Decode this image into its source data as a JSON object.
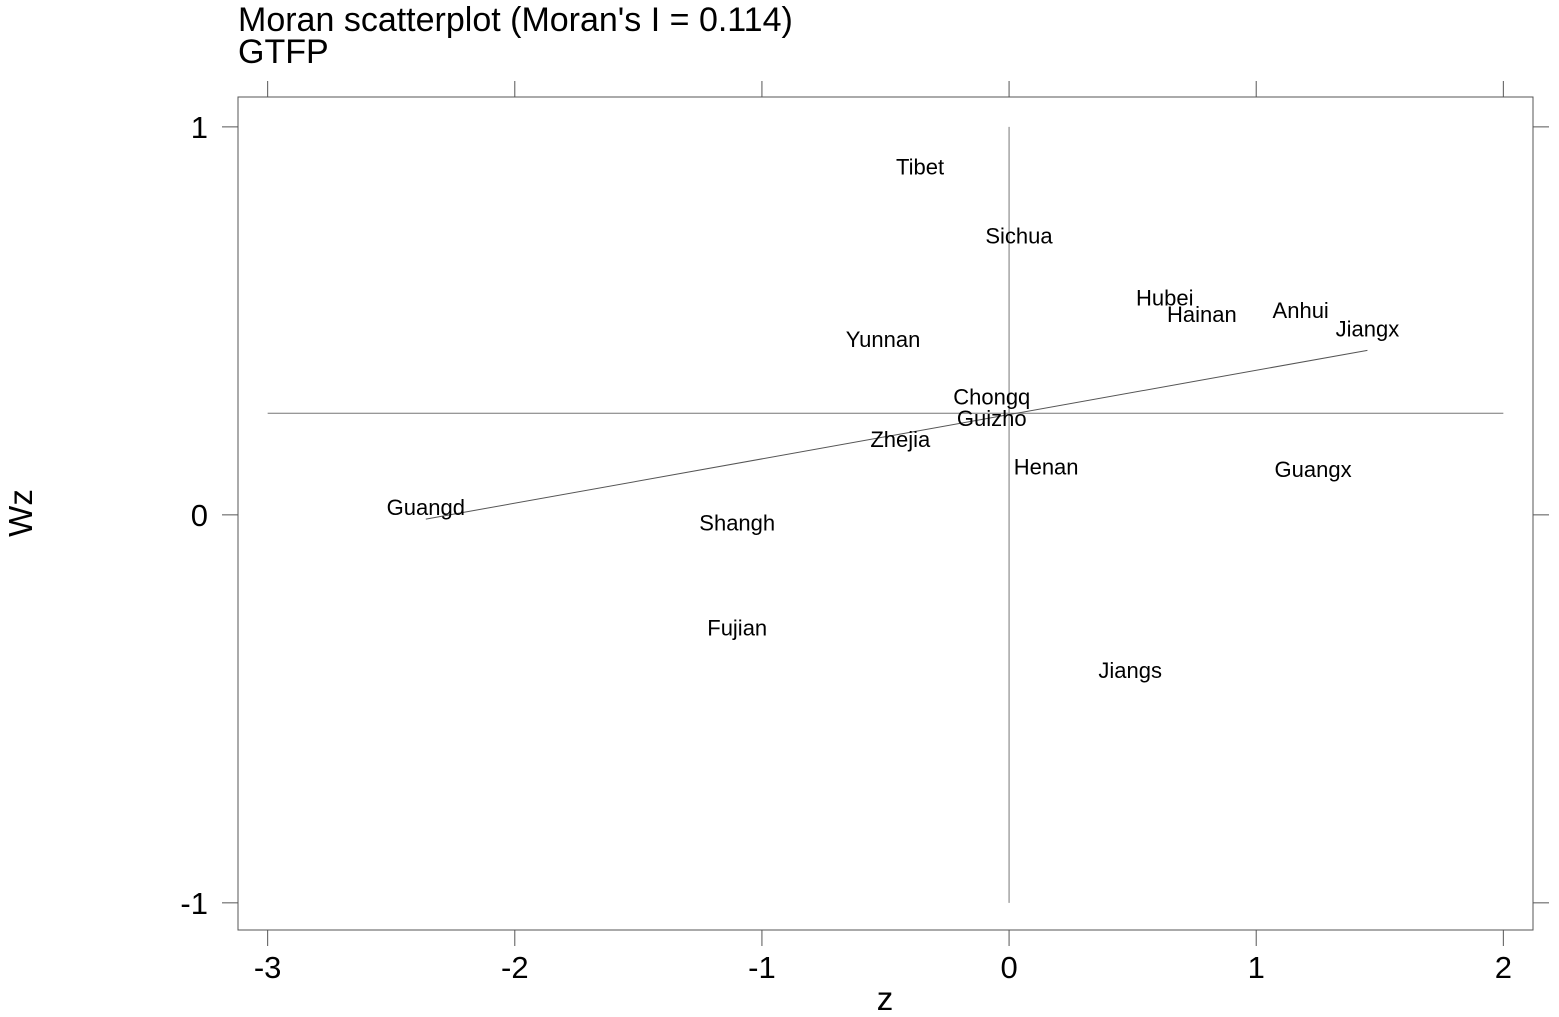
{
  "chart_data": {
    "type": "scatter",
    "title": "Moran scatterplot (Moran's I = 0.114)",
    "subtitle": "GTFP",
    "xlabel": "z",
    "ylabel": "Wz",
    "xlim": [
      -3.12,
      2.12
    ],
    "ylim": [
      -1.07,
      1.077
    ],
    "xticks": [
      -3,
      -2,
      -1,
      0,
      1,
      2
    ],
    "xtick_labels": [
      "-3",
      "-2",
      "-1",
      "0",
      "1",
      "2"
    ],
    "yticks": [
      -1,
      0,
      1
    ],
    "ytick_labels": [
      "-1",
      "0",
      "1"
    ],
    "grid": false,
    "legend": false,
    "reference_lines": {
      "x_mean": 0,
      "y_mean": 0.262,
      "y_range": [
        -1,
        1
      ],
      "x_range": [
        -3,
        2
      ]
    },
    "regression_line": {
      "x": [
        -2.36,
        1.45
      ],
      "y": [
        -0.011,
        0.424
      ]
    },
    "points": [
      {
        "label": "Tibet",
        "x": -0.36,
        "y": 0.898
      },
      {
        "label": "Sichua",
        "x": 0.04,
        "y": 0.72
      },
      {
        "label": "Hubei",
        "x": 0.63,
        "y": 0.56
      },
      {
        "label": "Hainan",
        "x": 0.78,
        "y": 0.518
      },
      {
        "label": "Anhui",
        "x": 1.18,
        "y": 0.528
      },
      {
        "label": "Jiangx",
        "x": 1.45,
        "y": 0.48
      },
      {
        "label": "Yunnan",
        "x": -0.51,
        "y": 0.453
      },
      {
        "label": "Chongq",
        "x": -0.07,
        "y": 0.305
      },
      {
        "label": "Guizho",
        "x": -0.07,
        "y": 0.25
      },
      {
        "label": "Zhejia",
        "x": -0.44,
        "y": 0.195
      },
      {
        "label": "Henan",
        "x": 0.15,
        "y": 0.125
      },
      {
        "label": "Guangx",
        "x": 1.23,
        "y": 0.118
      },
      {
        "label": "Guangd",
        "x": -2.36,
        "y": 0.02
      },
      {
        "label": "Shangh",
        "x": -1.1,
        "y": -0.02
      },
      {
        "label": "Fujian",
        "x": -1.1,
        "y": -0.29
      },
      {
        "label": "Jiangs",
        "x": 0.49,
        "y": -0.4
      }
    ]
  }
}
